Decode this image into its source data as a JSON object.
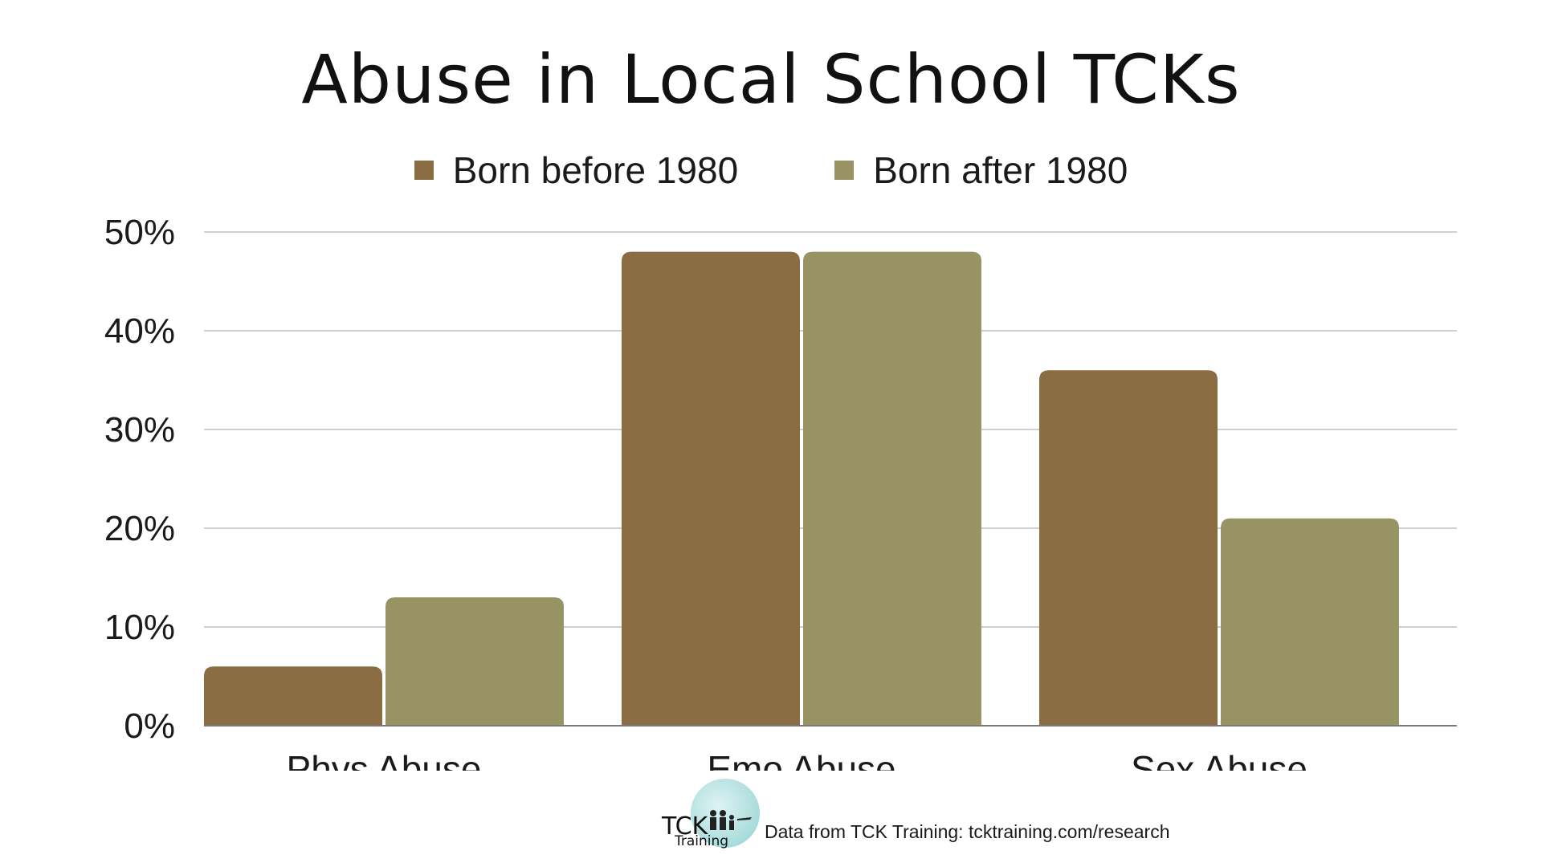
{
  "chart_data": {
    "type": "bar",
    "title": "Abuse in Local School TCKs",
    "categories": [
      "Phys Abuse",
      "Emo Abuse",
      "Sex Abuse"
    ],
    "series": [
      {
        "name": "Born before 1980",
        "color": "#8b6d44",
        "values": [
          6,
          48,
          36
        ]
      },
      {
        "name": "Born after 1980",
        "color": "#979362",
        "values": [
          13,
          48,
          21
        ]
      }
    ],
    "y_ticks": [
      "0%",
      "10%",
      "20%",
      "30%",
      "40%",
      "50%"
    ],
    "ylim": [
      0,
      50
    ],
    "grid": true,
    "legend_position": "top-center",
    "xlabel": "",
    "ylabel": ""
  },
  "logo": {
    "tck": "TCK",
    "training": "Training"
  },
  "source_note": "Data from TCK Training: tcktraining.com/research"
}
